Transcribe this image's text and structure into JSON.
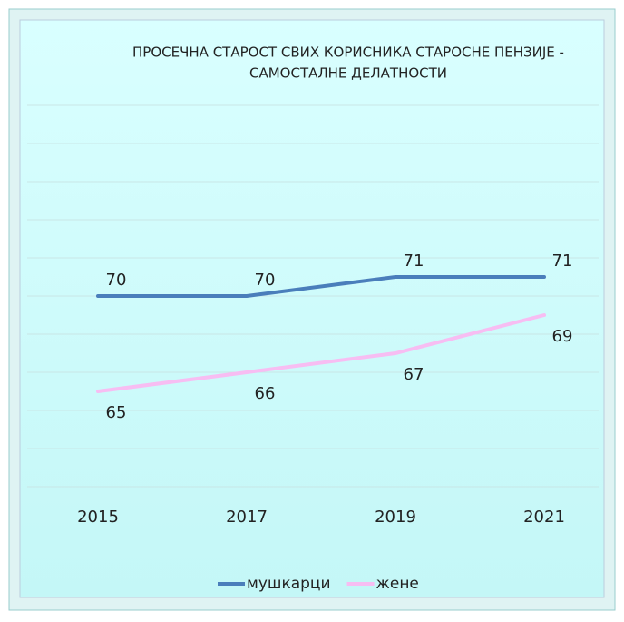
{
  "chart_data": {
    "type": "line",
    "title": [
      "ПРОСЕЧНА СТАРОСТ СВИХ КОРИСНИКА СТАРОСНЕ ПЕНЗИЈЕ -",
      "САМОСТАЛНЕ ДЕЛАТНОСТИ"
    ],
    "categories": [
      "2015",
      "2017",
      "2019",
      "2021"
    ],
    "series": [
      {
        "name": "мушкарци",
        "color": "#4a7ebb",
        "values": [
          70,
          70,
          71,
          71
        ],
        "label_side": "above"
      },
      {
        "name": "жене",
        "color": "#f7bdf2",
        "values": [
          65,
          66,
          67,
          69
        ],
        "label_side": "below"
      }
    ],
    "ylim": [
      60,
      80
    ],
    "yticks": [
      60,
      62,
      64,
      66,
      68,
      70,
      72,
      74,
      76,
      78,
      80
    ],
    "grid": true,
    "legend": "bottom"
  }
}
